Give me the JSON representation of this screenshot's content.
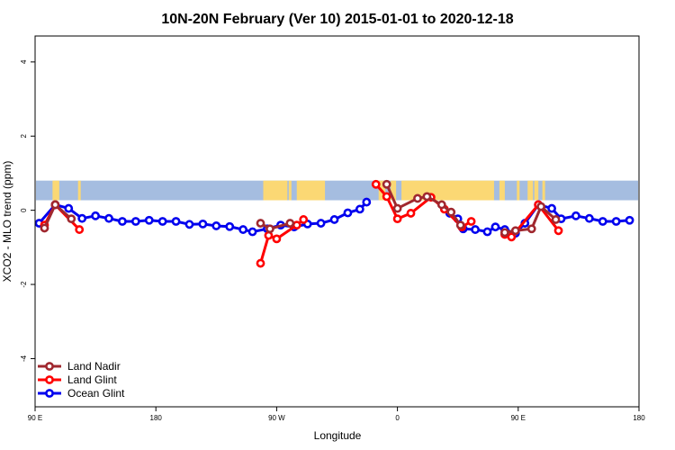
{
  "chart_data": {
    "type": "line",
    "title": "10N-20N February (Ver 10)   2015-01-01 to 2020-12-18",
    "xlabel": "Longitude",
    "ylabel": "XCO2 - MLO trend (ppm)",
    "xlim": [
      90,
      540
    ],
    "ylim": [
      -5.3,
      4.7
    ],
    "x_ticks": [
      {
        "value": 90,
        "label": "90 E"
      },
      {
        "value": 180,
        "label": "180"
      },
      {
        "value": 270,
        "label": "90 W"
      },
      {
        "value": 360,
        "label": "0"
      },
      {
        "value": 450,
        "label": "90 E"
      },
      {
        "value": 540,
        "label": "180"
      }
    ],
    "y_ticks": [
      {
        "value": -4,
        "label": "-4"
      },
      {
        "value": -2,
        "label": "-2"
      },
      {
        "value": 0,
        "label": "0"
      },
      {
        "value": 2,
        "label": "2"
      },
      {
        "value": 4,
        "label": "4"
      }
    ],
    "map_band": {
      "y_bottom": 0.27,
      "y_top": 0.8,
      "ocean_color": "#a5bde0",
      "land_color": "#fbd874"
    },
    "land_segments": [
      [
        103,
        108
      ],
      [
        122,
        124
      ],
      [
        260,
        262
      ],
      [
        262,
        278
      ],
      [
        279,
        281
      ],
      [
        285,
        306
      ],
      [
        346,
        351
      ],
      [
        355,
        359
      ],
      [
        363,
        432
      ],
      [
        436,
        440
      ],
      [
        449,
        451
      ],
      [
        457,
        461
      ],
      [
        462,
        465
      ],
      [
        468,
        470
      ]
    ],
    "legend": {
      "position": "bottom-left",
      "entries": [
        {
          "label": "Land Nadir",
          "color": "#a0282f"
        },
        {
          "label": "Land Glint",
          "color": "#ff0000"
        },
        {
          "label": "Ocean Glint",
          "color": "#0000ee"
        }
      ]
    },
    "series": [
      {
        "name": "Ocean Glint",
        "color": "#0000ee",
        "segments": [
          [
            [
              93,
              -0.35
            ],
            [
              105,
              0.15
            ],
            [
              115,
              0.05
            ],
            [
              125,
              -0.22
            ],
            [
              135,
              -0.15
            ],
            [
              145,
              -0.22
            ],
            [
              155,
              -0.3
            ],
            [
              165,
              -0.3
            ],
            [
              175,
              -0.27
            ],
            [
              185,
              -0.3
            ],
            [
              195,
              -0.3
            ],
            [
              205,
              -0.38
            ],
            [
              215,
              -0.37
            ],
            [
              225,
              -0.42
            ],
            [
              235,
              -0.44
            ],
            [
              245,
              -0.52
            ],
            [
              252,
              -0.58
            ],
            [
              263,
              -0.5
            ],
            [
              273,
              -0.4
            ],
            [
              283,
              -0.45
            ],
            [
              293,
              -0.37
            ],
            [
              303,
              -0.35
            ],
            [
              313,
              -0.25
            ],
            [
              323,
              -0.07
            ],
            [
              332,
              0.03
            ],
            [
              337,
              0.22
            ]
          ],
          [
            [
              399,
              -0.08
            ],
            [
              405,
              -0.23
            ],
            [
              409,
              -0.5
            ],
            [
              418,
              -0.52
            ],
            [
              427,
              -0.58
            ],
            [
              433,
              -0.45
            ],
            [
              440,
              -0.52
            ],
            [
              448,
              -0.62
            ],
            [
              455,
              -0.35
            ],
            [
              465,
              0.15
            ],
            [
              475,
              0.05
            ],
            [
              482,
              -0.23
            ],
            [
              493,
              -0.15
            ],
            [
              503,
              -0.22
            ],
            [
              513,
              -0.3
            ],
            [
              523,
              -0.3
            ],
            [
              533,
              -0.27
            ]
          ]
        ]
      },
      {
        "name": "Land Glint",
        "color": "#ff0000",
        "segments": [
          [
            [
              97,
              -0.4
            ],
            [
              105,
              0.15
            ],
            [
              123,
              -0.52
            ]
          ],
          [
            [
              258,
              -1.43
            ],
            [
              264,
              -0.68
            ],
            [
              270,
              -0.77
            ],
            [
              285,
              -0.4
            ],
            [
              290,
              -0.25
            ]
          ],
          [
            [
              344,
              0.7
            ],
            [
              352,
              0.37
            ],
            [
              360,
              -0.23
            ],
            [
              370,
              -0.08
            ],
            [
              385,
              0.35
            ],
            [
              395,
              0.03
            ],
            [
              408,
              -0.45
            ],
            [
              415,
              -0.3
            ]
          ],
          [
            [
              440,
              -0.65
            ],
            [
              445,
              -0.72
            ],
            [
              465,
              0.15
            ],
            [
              480,
              -0.55
            ]
          ]
        ]
      },
      {
        "name": "Land Nadir",
        "color": "#a0282f",
        "segments": [
          [
            [
              97,
              -0.48
            ],
            [
              105,
              0.15
            ],
            [
              117,
              -0.23
            ]
          ],
          [
            [
              258,
              -0.35
            ],
            [
              265,
              -0.5
            ],
            [
              280,
              -0.35
            ]
          ],
          [
            [
              352,
              0.7
            ],
            [
              360,
              0.05
            ],
            [
              375,
              0.32
            ],
            [
              382,
              0.37
            ],
            [
              393,
              0.15
            ],
            [
              400,
              -0.05
            ],
            [
              407,
              -0.4
            ]
          ],
          [
            [
              440,
              -0.6
            ],
            [
              448,
              -0.55
            ],
            [
              460,
              -0.5
            ],
            [
              467,
              0.1
            ],
            [
              478,
              -0.25
            ]
          ]
        ]
      }
    ]
  }
}
